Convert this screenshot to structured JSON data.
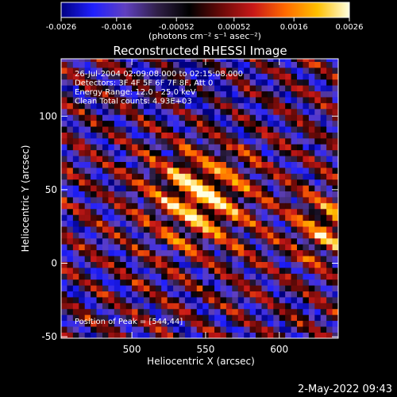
{
  "chart_data": {
    "type": "heatmap",
    "title": "Reconstructed RHESSI Image",
    "xlabel": "Heliocentric X (arcsec)",
    "ylabel": "Heliocentric Y (arcsec)",
    "xlim": [
      452,
      640
    ],
    "ylim": [
      -51,
      139
    ],
    "x_ticks": [
      500,
      550,
      600
    ],
    "y_ticks": [
      -50,
      0,
      50,
      100
    ],
    "grid": false,
    "colorbar": {
      "min": -0.0026,
      "max": 0.0026,
      "ticks": [
        "-0.0026",
        "-0.0016",
        "-0.00052",
        "0.00052",
        "0.0016",
        "0.0026"
      ],
      "label": "(photons cm⁻² s⁻¹ asec⁻²)",
      "colormap": [
        "#000080",
        "#2020ff",
        "#6040c0",
        "#302048",
        "#000000",
        "#6a0a08",
        "#c81818",
        "#ff6a00",
        "#ffc000",
        "#ffffe0"
      ]
    },
    "annotations": [
      "26-Jul-2004 02:09:08.000 to 02:15:08.000",
      "Detectors: 3F 4F 5F 6F 7F 8F, Att 0",
      "Energy Range: 12.0 - 25.0 keV",
      "Clean     Total counts: 4.93E+03"
    ],
    "peak_label": "Position of Peak = [544,44]",
    "peak": {
      "x": 544,
      "y": 44,
      "value": 0.0026
    },
    "stripe_angle_deg": 57,
    "stripe_period_arcsec": 19
  },
  "footer": {
    "timestamp": "2-May-2022 09:43"
  }
}
